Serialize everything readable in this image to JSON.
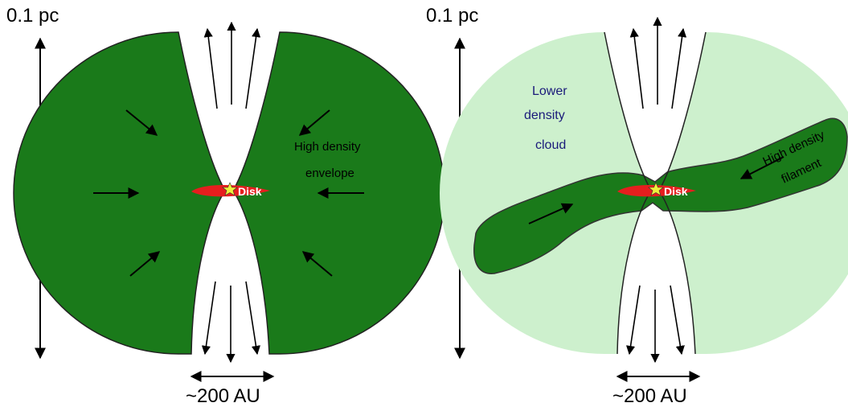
{
  "colors": {
    "envelope": "#1a7a1a",
    "cloud": "#cdf0cd",
    "disk": "#e61e1e",
    "star": "#f0f03c",
    "label_blue": "#1a1a7a"
  },
  "left_panel": {
    "scale_label": "0.1 pc",
    "width_label": "~200 AU",
    "envelope_label_line1": "High density",
    "envelope_label_line2": "envelope",
    "disk_label": "Disk"
  },
  "right_panel": {
    "scale_label": "0.1 pc",
    "width_label": "~200 AU",
    "cloud_label_line1": "Lower",
    "cloud_label_line2": "density",
    "cloud_label_line3": "cloud",
    "filament_label_line1": "High density",
    "filament_label_line2": "filament",
    "disk_label": "Disk"
  }
}
